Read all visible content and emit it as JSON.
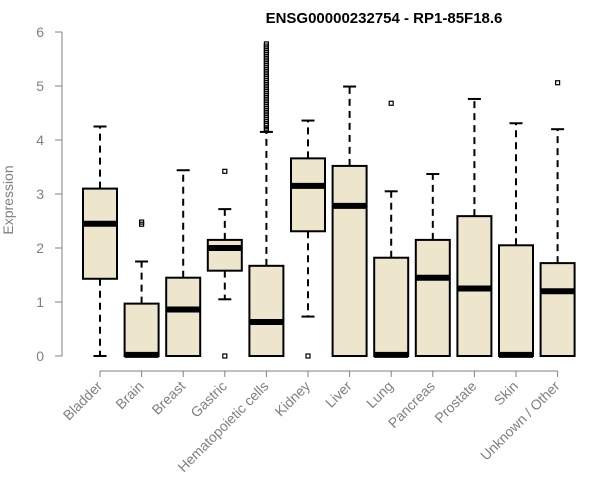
{
  "chart_data": {
    "type": "box",
    "title": "ENSG00000232754 - RP1-85F18.6",
    "xlabel": "",
    "ylabel": "Expression",
    "ylim": [
      0,
      6
    ],
    "yticks": [
      0,
      1,
      2,
      3,
      4,
      5,
      6
    ],
    "categories": [
      "Bladder",
      "Brain",
      "Breast",
      "Gastric",
      "Hematopoietic cells",
      "Kidney",
      "Liver",
      "Lung",
      "Pancreas",
      "Prostate",
      "Skin",
      "Unknown / Other"
    ],
    "boxes": [
      {
        "category": "Bladder",
        "whisker_low": 0.0,
        "q1": 1.43,
        "median": 2.45,
        "q3": 3.1,
        "whisker_high": 4.25,
        "outliers": []
      },
      {
        "category": "Brain",
        "whisker_low": 0.0,
        "q1": 0.0,
        "median": 0.02,
        "q3": 0.97,
        "whisker_high": 1.75,
        "outliers": [
          2.44,
          2.48
        ]
      },
      {
        "category": "Breast",
        "whisker_low": 0.0,
        "q1": 0.0,
        "median": 0.86,
        "q3": 1.45,
        "whisker_high": 3.44,
        "outliers": []
      },
      {
        "category": "Gastric",
        "whisker_low": 1.05,
        "q1": 1.58,
        "median": 2.0,
        "q3": 2.15,
        "whisker_high": 2.72,
        "outliers": [
          0.0,
          3.42
        ]
      },
      {
        "category": "Hematopoietic cells",
        "whisker_low": 0.0,
        "q1": 0.0,
        "median": 0.63,
        "q3": 1.67,
        "whisker_high": 4.15,
        "outliers": [
          4.18,
          4.22,
          4.27,
          4.3,
          4.34,
          4.38,
          4.42,
          4.46,
          4.5,
          4.54,
          4.58,
          4.62,
          4.66,
          4.7,
          4.74,
          4.78,
          4.82,
          4.86,
          4.9,
          4.94,
          4.98,
          5.02,
          5.06,
          5.1,
          5.14,
          5.18,
          5.22,
          5.26,
          5.3,
          5.34,
          5.38,
          5.42,
          5.46,
          5.5,
          5.54,
          5.58,
          5.62,
          5.66,
          5.7,
          5.74,
          5.78
        ]
      },
      {
        "category": "Kidney",
        "whisker_low": 0.73,
        "q1": 2.31,
        "median": 3.15,
        "q3": 3.66,
        "whisker_high": 4.36,
        "outliers": [
          0.0
        ]
      },
      {
        "category": "Liver",
        "whisker_low": 0.0,
        "q1": 0.0,
        "median": 2.78,
        "q3": 3.52,
        "whisker_high": 4.99,
        "outliers": []
      },
      {
        "category": "Lung",
        "whisker_low": 0.0,
        "q1": 0.0,
        "median": 0.02,
        "q3": 1.82,
        "whisker_high": 3.05,
        "outliers": [
          4.68
        ]
      },
      {
        "category": "Pancreas",
        "whisker_low": 0.0,
        "q1": 0.0,
        "median": 1.45,
        "q3": 2.15,
        "whisker_high": 3.37,
        "outliers": []
      },
      {
        "category": "Prostate",
        "whisker_low": 0.0,
        "q1": 0.0,
        "median": 1.25,
        "q3": 2.59,
        "whisker_high": 4.76,
        "outliers": []
      },
      {
        "category": "Skin",
        "whisker_low": 0.0,
        "q1": 0.0,
        "median": 0.02,
        "q3": 2.05,
        "whisker_high": 4.31,
        "outliers": []
      },
      {
        "category": "Unknown / Other",
        "whisker_low": 0.0,
        "q1": 0.0,
        "median": 1.2,
        "q3": 1.72,
        "whisker_high": 4.2,
        "outliers": [
          5.06
        ]
      }
    ],
    "colors": {
      "box_fill": "#ede6cc",
      "box_stroke": "#000000",
      "axis": "#808080",
      "tick_text": "#808080",
      "title": "#000000"
    }
  }
}
